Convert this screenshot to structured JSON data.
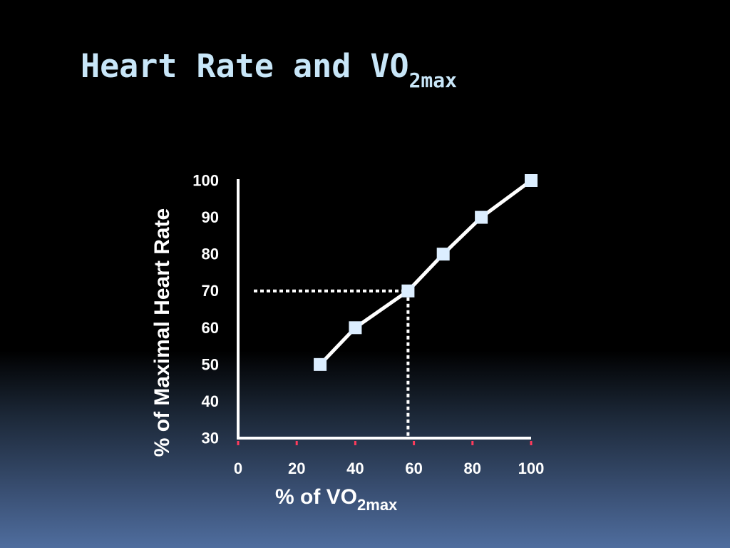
{
  "title": {
    "main": "Heart Rate and VO",
    "sub": "2max"
  },
  "chart_data": {
    "type": "line",
    "x": [
      28,
      40,
      58,
      70,
      83,
      100
    ],
    "y": [
      50,
      60,
      70,
      80,
      90,
      100
    ],
    "xlim": [
      0,
      100
    ],
    "ylim": [
      30,
      100
    ],
    "xticks": [
      "0",
      "20",
      "40",
      "60",
      "80",
      "100"
    ],
    "yticks": [
      "30",
      "40",
      "50",
      "60",
      "70",
      "80",
      "90",
      "100"
    ],
    "xlabel": {
      "main": "% of VO",
      "sub": "2max"
    },
    "ylabel": "% of Maximal Heart Rate",
    "reference_point": {
      "x": 58,
      "y": 70
    },
    "grid": false,
    "colors": {
      "line": "#ffffff",
      "marker": "#dceeff",
      "tick": "#ff3b5c",
      "title": "#c8e6f8"
    }
  }
}
